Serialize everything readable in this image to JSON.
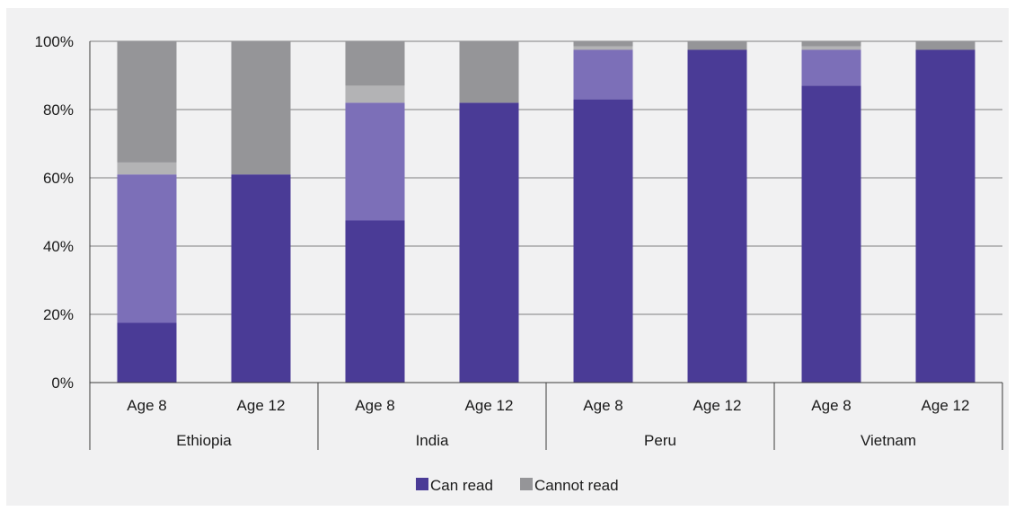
{
  "chart_data": {
    "type": "bar",
    "stacked": true,
    "groups": [
      "Ethiopia",
      "India",
      "Peru",
      "Vietnam"
    ],
    "categories": [
      "Age 8",
      "Age 12",
      "Age 8",
      "Age 12",
      "Age 8",
      "Age 12",
      "Age 8",
      "Age 12"
    ],
    "series": [
      {
        "values": [
          17.5,
          61,
          47.5,
          82,
          83,
          97.5,
          87,
          97.5
        ],
        "color": "#4a3b96"
      },
      {
        "values": [
          43.5,
          0,
          34.5,
          0,
          14.5,
          0,
          10.5,
          0
        ],
        "color": "#7c6fb8"
      },
      {
        "values": [
          3.5,
          0,
          5,
          0,
          1,
          0,
          1,
          0
        ],
        "color": "#b3b3b5"
      },
      {
        "values": [
          35.5,
          39,
          13,
          18,
          1.5,
          2.5,
          1.5,
          2.5
        ],
        "color": "#959598"
      }
    ],
    "ylim": [
      0,
      100
    ],
    "yticks": [
      "0%",
      "20%",
      "40%",
      "60%",
      "80%",
      "100%"
    ],
    "grid": true,
    "legend": {
      "position": "bottom",
      "entries": [
        {
          "name": "Can read",
          "color": "#4a3b96"
        },
        {
          "name": "Cannot read",
          "color": "#959598"
        }
      ]
    }
  }
}
